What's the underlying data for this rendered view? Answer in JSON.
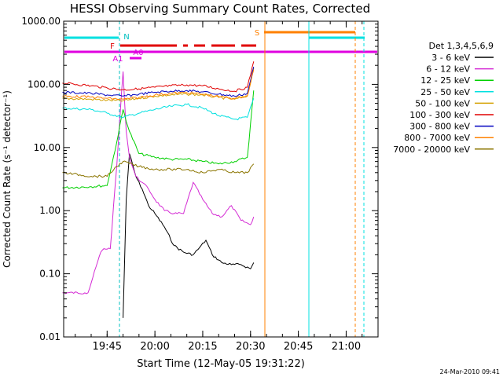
{
  "chart_data": {
    "type": "line",
    "title": "HESSI Observing Summary Count Rates, Corrected",
    "ylabel": "Corrected Count Rate (s⁻¹ detector⁻¹)",
    "xlabel": "Start Time (12-May-05 19:31:22)",
    "footer": "24-Mar-2010 09:41",
    "y_scale": "log",
    "ylim": [
      0.01,
      1000
    ],
    "y_ticks": [
      "1000.00",
      "100.00",
      "10.00",
      "1.00",
      "0.10",
      "0.01"
    ],
    "xlim": [
      "19:31:22",
      "21:10:00"
    ],
    "x_ticks": [
      "19:45",
      "20:00",
      "20:15",
      "20:30",
      "20:45",
      "21:00"
    ],
    "legend_title": "Det 1,3,4,5,6,9",
    "grid": false,
    "legend_position": "right",
    "series": [
      {
        "name": "3 - 6 keV",
        "color": "#000000",
        "x": [
          "19:50",
          "19:51",
          "19:52",
          "19:54",
          "19:56",
          "19:58",
          "20:00",
          "20:03",
          "20:06",
          "20:09",
          "20:12",
          "20:14",
          "20:16",
          "20:18",
          "20:21",
          "20:24",
          "20:27",
          "20:30",
          "20:31"
        ],
        "values": [
          0.02,
          1.5,
          8,
          3.5,
          2.2,
          1.2,
          0.9,
          0.55,
          0.28,
          0.22,
          0.2,
          0.26,
          0.34,
          0.2,
          0.15,
          0.14,
          0.14,
          0.12,
          0.15
        ]
      },
      {
        "name": "6 - 12 keV",
        "color": "#d42bd4",
        "x": [
          "19:31",
          "19:38",
          "19:39",
          "19:43",
          "19:44",
          "19:46",
          "19:48",
          "19:50",
          "19:51",
          "19:52",
          "19:54",
          "19:56",
          "19:58",
          "20:00",
          "20:03",
          "20:06",
          "20:09",
          "20:12",
          "20:15",
          "20:18",
          "20:21",
          "20:24",
          "20:27",
          "20:30",
          "20:31"
        ],
        "values": [
          0.05,
          0.05,
          0.05,
          0.22,
          0.25,
          0.25,
          5,
          160,
          18,
          7,
          3.5,
          2.8,
          2.2,
          1.5,
          1.0,
          0.9,
          0.9,
          2.8,
          1.5,
          0.9,
          0.8,
          1.2,
          0.7,
          0.6,
          0.8
        ]
      },
      {
        "name": "12 - 25 keV",
        "color": "#00d000",
        "x": [
          "19:31",
          "19:40",
          "19:45",
          "19:48",
          "19:50",
          "19:52",
          "19:55",
          "20:00",
          "20:05",
          "20:10",
          "20:15",
          "20:20",
          "20:25",
          "20:29",
          "20:31"
        ],
        "values": [
          2.3,
          2.4,
          2.5,
          12,
          40,
          18,
          8,
          7,
          6.5,
          6.5,
          6,
          5.5,
          6,
          7,
          80
        ]
      },
      {
        "name": "25 - 50 keV",
        "color": "#00e0e0",
        "x": [
          "19:31",
          "19:40",
          "19:45",
          "19:50",
          "19:55",
          "20:00",
          "20:05",
          "20:10",
          "20:15",
          "20:20",
          "20:25",
          "20:29",
          "20:31"
        ],
        "values": [
          42,
          40,
          35,
          30,
          35,
          40,
          45,
          48,
          42,
          32,
          28,
          30,
          60
        ]
      },
      {
        "name": "50 - 100 keV",
        "color": "#d4a000",
        "x": [
          "19:31",
          "19:40",
          "19:45",
          "19:50",
          "19:55",
          "20:00",
          "20:05",
          "20:10",
          "20:15",
          "20:20",
          "20:25",
          "20:29",
          "20:31"
        ],
        "values": [
          60,
          58,
          56,
          55,
          60,
          65,
          68,
          70,
          68,
          62,
          58,
          65,
          180
        ]
      },
      {
        "name": "100 - 300 keV",
        "color": "#e00000",
        "x": [
          "19:31",
          "19:40",
          "19:45",
          "19:50",
          "19:55",
          "20:00",
          "20:05",
          "20:10",
          "20:15",
          "20:20",
          "20:25",
          "20:29",
          "20:31"
        ],
        "values": [
          105,
          95,
          88,
          82,
          85,
          90,
          95,
          98,
          95,
          85,
          78,
          90,
          230
        ]
      },
      {
        "name": "300 - 800 keV",
        "color": "#0000c0",
        "x": [
          "19:31",
          "19:40",
          "19:45",
          "19:50",
          "19:55",
          "20:00",
          "20:05",
          "20:10",
          "20:15",
          "20:20",
          "20:25",
          "20:29",
          "20:31"
        ],
        "values": [
          75,
          72,
          68,
          65,
          70,
          75,
          78,
          80,
          76,
          70,
          65,
          72,
          190
        ]
      },
      {
        "name": "800 - 7000 keV",
        "color": "#ff8000",
        "x": [
          "19:31",
          "19:40",
          "19:45",
          "19:50",
          "19:55",
          "20:00",
          "20:05",
          "20:10",
          "20:15",
          "20:20",
          "20:25",
          "20:29",
          "20:31"
        ],
        "values": [
          65,
          63,
          60,
          58,
          62,
          68,
          72,
          74,
          70,
          64,
          60,
          66,
          170
        ]
      },
      {
        "name": "7000 - 20000 keV",
        "color": "#8b7500",
        "x": [
          "19:31",
          "19:40",
          "19:45",
          "19:48",
          "19:50",
          "19:55",
          "20:00",
          "20:05",
          "20:10",
          "20:15",
          "20:20",
          "20:25",
          "20:29",
          "20:31"
        ],
        "values": [
          4.0,
          3.5,
          3.5,
          5,
          6,
          5,
          4.5,
          4.5,
          4.5,
          4.0,
          4.5,
          4.0,
          4.0,
          5.5
        ]
      }
    ],
    "annotations": [
      "N",
      "F",
      "A1",
      "A0",
      "S"
    ]
  }
}
